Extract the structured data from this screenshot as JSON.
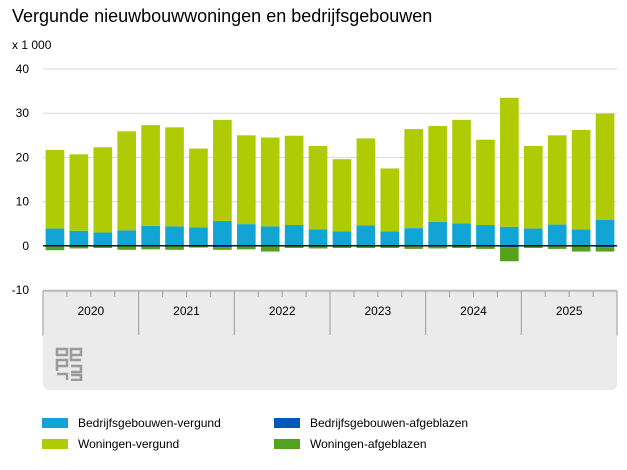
{
  "page": {
    "title": "Vergunde nieuwbouwwoningen en bedrijfsgebouwen",
    "unit": "x 1 000"
  },
  "colors": {
    "bedrijf_vergund": "#12a4d4",
    "bedrijf_afgeblazen": "#0058b8",
    "woningen_vergund": "#afcb05",
    "woningen_afgeblazen": "#53a31d",
    "grid": "#d9d9d9",
    "zero": "#000000",
    "axis_band": "#ebebeb"
  },
  "legend": [
    {
      "label": "Bedrijfsgebouwen-vergund",
      "color": "#12a4d4"
    },
    {
      "label": "Bedrijfsgebouwen-afgeblazen",
      "color": "#0058b8"
    },
    {
      "label": "Woningen-vergund",
      "color": "#afcb05"
    },
    {
      "label": "Woningen-afgeblazen",
      "color": "#53a31d"
    }
  ],
  "chart_data": {
    "type": "bar",
    "stacked": true,
    "title": "Vergunde nieuwbouwwoningen en bedrijfsgebouwen",
    "ylabel": "x 1 000",
    "ylim": [
      -10,
      40
    ],
    "yticks": [
      40,
      30,
      20,
      10,
      0,
      -10
    ],
    "grid": true,
    "x": [
      "2020-Q1",
      "2020-Q2",
      "2020-Q3",
      "2020-Q4",
      "2021-Q1",
      "2021-Q2",
      "2021-Q3",
      "2021-Q4",
      "2022-Q1",
      "2022-Q2",
      "2022-Q3",
      "2022-Q4",
      "2023-Q1",
      "2023-Q2",
      "2023-Q3",
      "2023-Q4",
      "2024-Q1",
      "2024-Q2",
      "2024-Q3",
      "2024-Q4",
      "2025-Q1",
      "2025-Q2",
      "2025-Q3",
      "2025-Q4"
    ],
    "year_labels": [
      "2020",
      "2021",
      "2022",
      "2023",
      "2024",
      "2025"
    ],
    "series": [
      {
        "name": "Bedrijfsgebouwen-vergund",
        "color": "#12a4d4",
        "values": [
          3.9,
          3.4,
          3.0,
          3.5,
          4.5,
          4.4,
          4.2,
          5.6,
          4.9,
          4.4,
          4.7,
          3.7,
          3.3,
          4.6,
          3.3,
          4.0,
          5.4,
          5.1,
          4.7,
          4.3,
          3.9,
          4.8,
          3.7,
          5.9
        ]
      },
      {
        "name": "Woningen-vergund",
        "color": "#afcb05",
        "values": [
          17.8,
          17.3,
          19.3,
          22.4,
          22.8,
          22.4,
          17.8,
          22.9,
          20.1,
          20.1,
          20.2,
          18.9,
          16.3,
          19.7,
          14.2,
          22.4,
          21.7,
          23.4,
          19.3,
          29.2,
          18.7,
          20.2,
          22.5,
          24.0
        ]
      },
      {
        "name": "Bedrijfsgebouwen-afgeblazen",
        "color": "#0058b8",
        "values": [
          -0.2,
          -0.1,
          -0.1,
          -0.2,
          -0.2,
          -0.2,
          -0.1,
          -0.3,
          -0.2,
          -0.2,
          -0.1,
          -0.1,
          -0.1,
          -0.1,
          -0.1,
          -0.2,
          -0.2,
          -0.1,
          -0.2,
          -0.3,
          -0.1,
          -0.2,
          -0.1,
          -0.3
        ]
      },
      {
        "name": "Woningen-afgeblazen",
        "color": "#53a31d",
        "values": [
          -0.8,
          -0.5,
          -0.4,
          -0.7,
          -0.6,
          -0.7,
          -0.3,
          -0.6,
          -0.6,
          -1.1,
          -0.4,
          -0.5,
          -0.4,
          -0.4,
          -0.4,
          -0.5,
          -0.4,
          -0.4,
          -0.5,
          -3.2,
          -0.4,
          -0.5,
          -1.2,
          -1.0
        ]
      }
    ]
  }
}
